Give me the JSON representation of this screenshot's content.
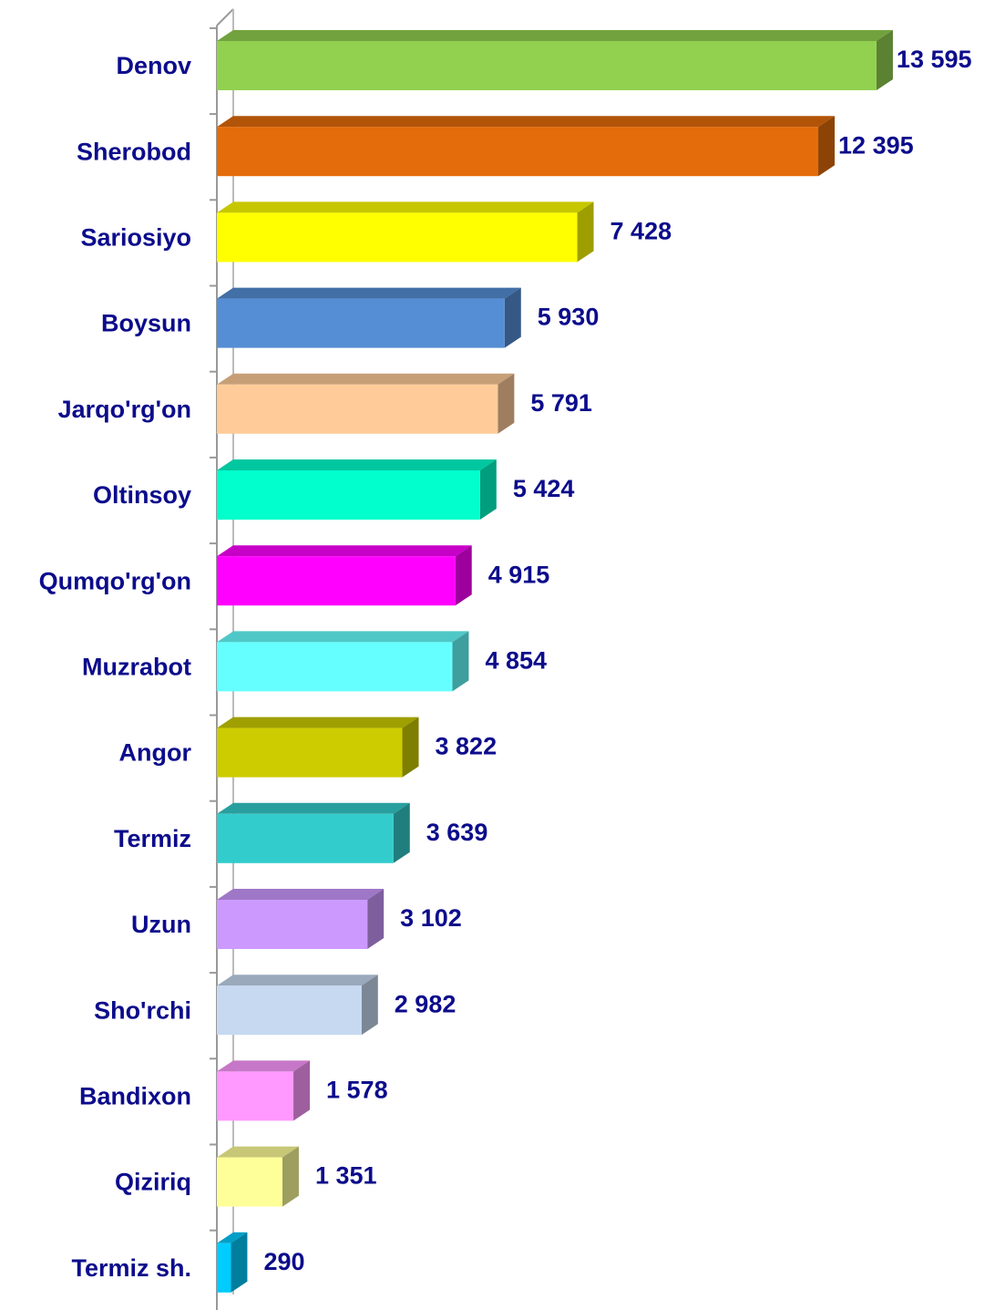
{
  "chart_data": {
    "type": "bar",
    "orientation": "horizontal",
    "categories": [
      "Denov",
      "Sherobod",
      "Sariosiyo",
      "Boysun",
      "Jarqo'rg'on",
      "Oltinsoy",
      "Qumqo'rg'on",
      "Muzrabot",
      "Angor",
      "Termiz",
      "Uzun",
      "Sho'rchi",
      "Bandixon",
      "Qiziriq",
      "Termiz sh."
    ],
    "values": [
      13595,
      12395,
      7428,
      5930,
      5791,
      5424,
      4915,
      4854,
      3822,
      3639,
      3102,
      2982,
      1578,
      1351,
      290
    ],
    "value_labels": [
      "13 595",
      "12 395",
      "7 428",
      "5 930",
      "5 791",
      "5 424",
      "4 915",
      "4 854",
      "3 822",
      "3 639",
      "3 102",
      "2 982",
      "1 578",
      "1 351",
      "290"
    ],
    "colors": [
      "#92d050",
      "#e46c0a",
      "#ffff00",
      "#558ed5",
      "#ffcc99",
      "#00ffcc",
      "#ff00ff",
      "#66ffff",
      "#cccc00",
      "#33cccc",
      "#cc99ff",
      "#c6d9f1",
      "#ff99ff",
      "#ffff99",
      "#00ccff"
    ],
    "xlim": [
      0,
      16000
    ]
  }
}
